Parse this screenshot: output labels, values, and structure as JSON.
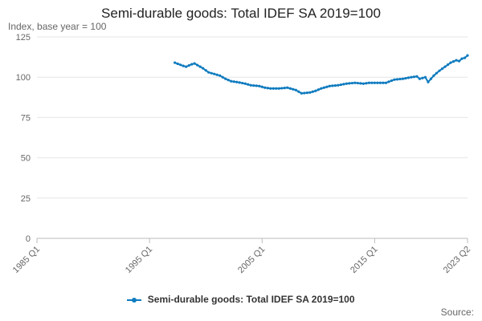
{
  "chart_data": {
    "type": "line",
    "title": "Semi-durable goods: Total IDEF SA 2019=100",
    "ylabel": "Index, base year = 100",
    "xlabel": "",
    "ylim": [
      0,
      125
    ],
    "yticks": [
      0,
      25,
      50,
      75,
      100,
      125
    ],
    "x_start": "1985 Q1",
    "x_end": "2023 Q2",
    "xticks": [
      {
        "label": "1985 Q1",
        "index": 0
      },
      {
        "label": "1995 Q1",
        "index": 40
      },
      {
        "label": "2005 Q1",
        "index": 80
      },
      {
        "label": "2015 Q1",
        "index": 120
      },
      {
        "label": "2023 Q2",
        "index": 153
      }
    ],
    "legend_position": "bottom",
    "series": [
      {
        "name": "Semi-durable goods: Total IDEF SA 2019=100",
        "color": "#0f7bbf",
        "start_index": 49,
        "anchors": [
          [
            49,
            109.0
          ],
          [
            52,
            107.0
          ],
          [
            53,
            106.5
          ],
          [
            55,
            108.0
          ],
          [
            56,
            108.5
          ],
          [
            57,
            107.5
          ],
          [
            59,
            105.5
          ],
          [
            61,
            103.0
          ],
          [
            63,
            102.0
          ],
          [
            65,
            101.0
          ],
          [
            67,
            99.0
          ],
          [
            69,
            97.5
          ],
          [
            71,
            97.0
          ],
          [
            74,
            96.0
          ],
          [
            76,
            95.0
          ],
          [
            79,
            94.5
          ],
          [
            81,
            93.5
          ],
          [
            83,
            93.0
          ],
          [
            86,
            93.0
          ],
          [
            89,
            93.5
          ],
          [
            92,
            92.0
          ],
          [
            94,
            90.0
          ],
          [
            97,
            90.5
          ],
          [
            99,
            91.5
          ],
          [
            101,
            93.0
          ],
          [
            104,
            94.5
          ],
          [
            107,
            95.0
          ],
          [
            110,
            96.0
          ],
          [
            113,
            96.5
          ],
          [
            116,
            96.0
          ],
          [
            118,
            96.5
          ],
          [
            121,
            96.5
          ],
          [
            124,
            96.5
          ],
          [
            127,
            98.5
          ],
          [
            130,
            99.0
          ],
          [
            133,
            100.0
          ],
          [
            135,
            100.5
          ],
          [
            136,
            99.0
          ],
          [
            138,
            100.0
          ],
          [
            139,
            97.0
          ],
          [
            141,
            101.0
          ],
          [
            143,
            104.0
          ],
          [
            145,
            106.5
          ],
          [
            147,
            109.0
          ],
          [
            149,
            110.5
          ],
          [
            150,
            110.0
          ],
          [
            151,
            111.5
          ],
          [
            152,
            112.0
          ],
          [
            153,
            113.5
          ]
        ]
      }
    ]
  },
  "labels": {
    "source": "Source:"
  }
}
